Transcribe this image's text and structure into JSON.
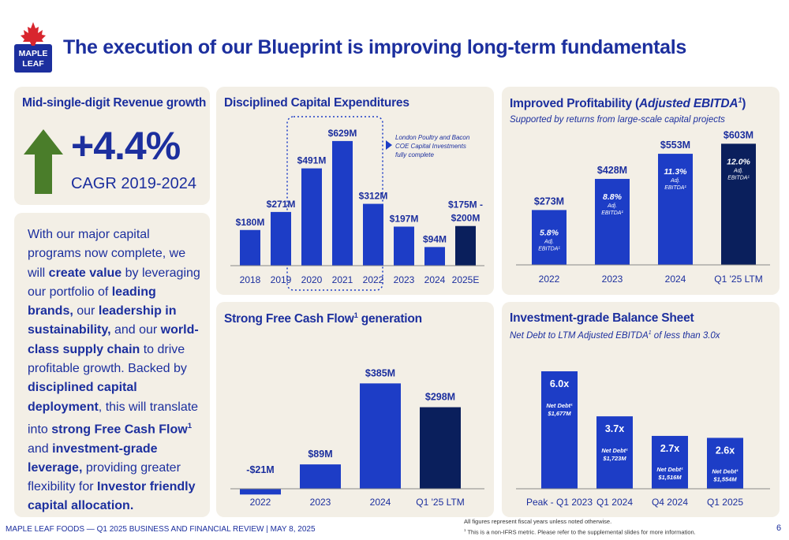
{
  "logo": {
    "line1": "MAPLE",
    "line2": "LEAF"
  },
  "title": "The execution of our Blueprint is improving long-term fundamentals",
  "revenue": {
    "title": "Mid-single-digit Revenue growth",
    "value": "+4.4%",
    "caption": "CAGR 2019-2024",
    "icon": "up-arrow-icon",
    "arrow_color": "#4a7d2a"
  },
  "text_panel": {
    "segments": [
      {
        "t": "With our major capital programs now complete, we will ",
        "b": false
      },
      {
        "t": "create value",
        "b": true
      },
      {
        "t": " by leveraging our portfolio of ",
        "b": false
      },
      {
        "t": "leading brands,",
        "b": true
      },
      {
        "t": " our ",
        "b": false
      },
      {
        "t": "leadership in sustainability,",
        "b": true
      },
      {
        "t": " and our ",
        "b": false
      },
      {
        "t": "world-class supply chain",
        "b": true
      },
      {
        "t": " to drive profitable growth. Backed by ",
        "b": false
      },
      {
        "t": "disciplined capital deployment",
        "b": true
      },
      {
        "t": ", this will translate into ",
        "b": false
      },
      {
        "t": "strong Free Cash Flow",
        "b": true
      },
      {
        "t": "1",
        "b": true,
        "sup": true
      },
      {
        "t": " and ",
        "b": false
      },
      {
        "t": "investment-grade leverage,",
        "b": true
      },
      {
        "t": " providing greater flexibility for ",
        "b": false
      },
      {
        "t": "Investor friendly capital allocation.",
        "b": true
      }
    ]
  },
  "chart_data": [
    {
      "type": "bar",
      "title": "Disciplined Capital Expenditures",
      "categories": [
        "2018",
        "2019",
        "2020",
        "2021",
        "2022",
        "2023",
        "2024",
        "2025E"
      ],
      "values": [
        180,
        271,
        491,
        629,
        312,
        197,
        94,
        200
      ],
      "labels": [
        "$180M",
        "$271M",
        "$491M",
        "$629M",
        "$312M",
        "$197M",
        "$94M",
        "$175M -|$200M"
      ],
      "highlight_categories": [
        "2020",
        "2021",
        "2022"
      ],
      "annotation": [
        "London Poultry and Bacon",
        "COE Capital Investments",
        "fully complete"
      ],
      "colors": {
        "bar": "#1d3dc6",
        "estimate": "#0a1f5c"
      },
      "ylim": [
        0,
        700
      ]
    },
    {
      "type": "bar",
      "title": "Improved Profitability (Adjusted EBITDA1)",
      "subtitle": "Supported by returns from large-scale capital projects",
      "categories": [
        "2022",
        "2023",
        "2024",
        "Q1 '25 LTM"
      ],
      "values": [
        273,
        428,
        553,
        603
      ],
      "labels": [
        "$273M",
        "$428M",
        "$553M",
        "$603M"
      ],
      "margins": [
        "5.8%",
        "8.8%",
        "11.3%",
        "12.0%"
      ],
      "margin_caption": [
        "Adj.",
        "EBITDA"
      ],
      "colors": {
        "bar": "#1d3dc6",
        "ltm": "#0a1f5c"
      },
      "ylim": [
        0,
        620
      ]
    },
    {
      "type": "bar",
      "title": "Strong Free Cash Flow1 generation",
      "categories": [
        "2022",
        "2023",
        "2024",
        "Q1 '25 LTM"
      ],
      "values": [
        -21,
        89,
        385,
        298
      ],
      "labels": [
        "-$21M",
        "$89M",
        "$385M",
        "$298M"
      ],
      "colors": {
        "bar": "#1d3dc6",
        "ltm": "#0a1f5c"
      },
      "ylim": [
        -30,
        400
      ]
    },
    {
      "type": "bar",
      "title": "Investment-grade Balance Sheet",
      "subtitle": "Net Debt to LTM Adjusted EBITDA1 of less than 3.0x",
      "categories": [
        "Peak - Q1 2023",
        "Q1 2024",
        "Q4 2024",
        "Q1 2025"
      ],
      "values": [
        6.0,
        3.7,
        2.7,
        2.6
      ],
      "labels": [
        "6.0x",
        "3.7x",
        "2.7x",
        "2.6x"
      ],
      "net_debt": [
        "$1,677M",
        "$1,723M",
        "$1,516M",
        "$1,554M"
      ],
      "net_debt_caption": "Net Debt",
      "colors": {
        "bar": "#1d3dc6"
      },
      "ylim": [
        0,
        6.0
      ]
    }
  ],
  "footer": "MAPLE LEAF FOODS — Q1 2025 BUSINESS AND FINANCIAL REVIEW |  MAY 8, 2025",
  "footnote1": "All figures represent fiscal years unless noted otherwise.",
  "footnote2": "This is a non-IFRS metric. Please refer to the supplemental slides for more information.",
  "page": "6"
}
